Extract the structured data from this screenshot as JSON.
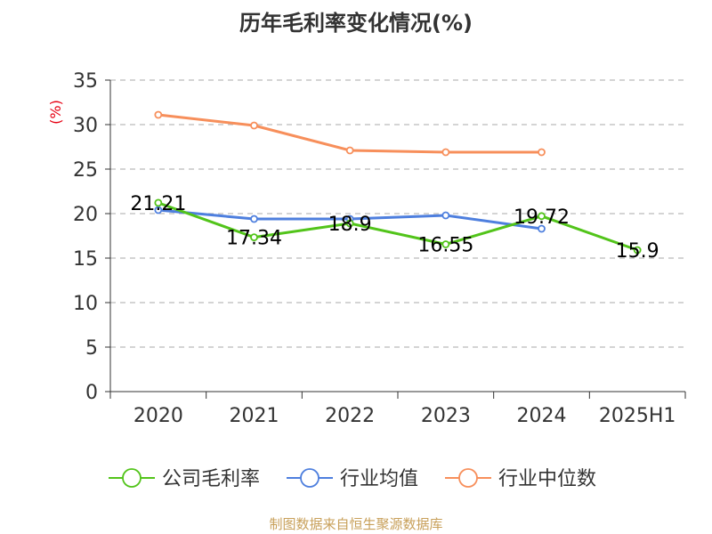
{
  "chart_data": {
    "type": "line",
    "title": "历年毛利率变化情况(%)",
    "ylabel": "(%)",
    "categories": [
      "2020",
      "2021",
      "2022",
      "2023",
      "2024",
      "2025H1"
    ],
    "ylim": [
      0,
      35
    ],
    "yticks": [
      0,
      5,
      10,
      15,
      20,
      25,
      30,
      35
    ],
    "grid": true,
    "legend_position": "bottom",
    "series": [
      {
        "name": "公司毛利率",
        "color": "#52c41a",
        "values": [
          21.21,
          17.34,
          18.9,
          16.55,
          19.72,
          15.9
        ],
        "labels": [
          "21.21",
          "17.34",
          "18.9",
          "16.55",
          "19.72",
          "15.9"
        ]
      },
      {
        "name": "行业均值",
        "color": "#4e7fde",
        "values": [
          20.4,
          19.4,
          19.4,
          19.8,
          18.3,
          null
        ]
      },
      {
        "name": "行业中位数",
        "color": "#f78f5b",
        "values": [
          31.1,
          29.9,
          27.1,
          26.9,
          26.9,
          null
        ]
      }
    ]
  },
  "source": "制图数据来自恒生聚源数据库"
}
